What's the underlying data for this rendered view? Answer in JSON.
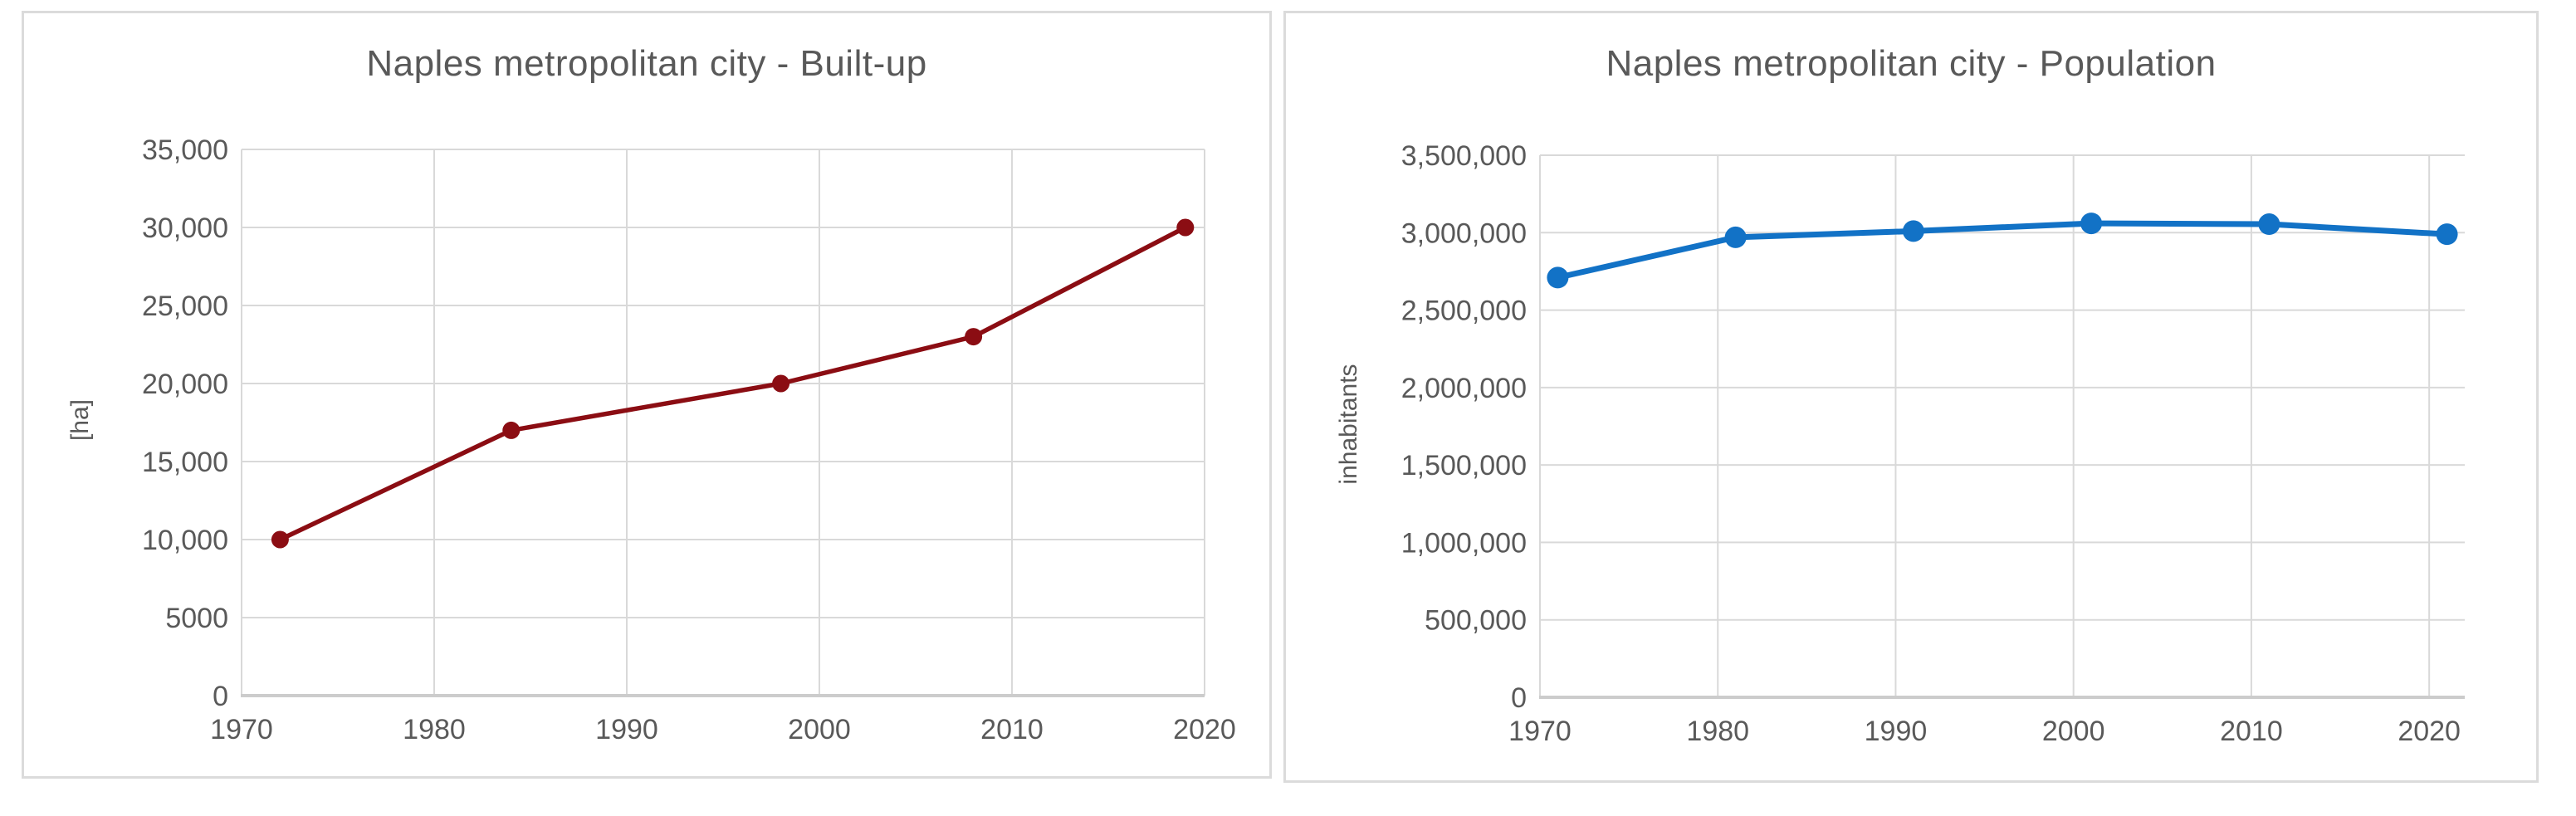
{
  "page": {
    "background": "#ffffff"
  },
  "styles": {
    "grid_color": "#D9D9D9",
    "axis_color": "#CCCCCC",
    "tick_color": "#595959",
    "title_color": "#595959",
    "card_border_color": "#DBDBDB",
    "built_up_color": "#8B0D13",
    "population_color": "#1272C6"
  },
  "chart_data": [
    {
      "type": "line",
      "title": "Naples metropolitan city - Built-up",
      "xlabel": "",
      "ylabel": "[ha]",
      "xlim": [
        1970,
        2020
      ],
      "ylim": [
        0,
        35000
      ],
      "grid": true,
      "legend": "none",
      "xticks": [
        1970,
        1980,
        1990,
        2000,
        2010,
        2020
      ],
      "xtick_labels": [
        "1970",
        "1980",
        "1990",
        "2000",
        "2010",
        "2020"
      ],
      "yticks": [
        0,
        5000,
        10000,
        15000,
        20000,
        25000,
        30000,
        35000
      ],
      "ytick_labels": [
        "0",
        "5000",
        "10,000",
        "15,000",
        "20,000",
        "25,000",
        "30,000",
        "35,000"
      ],
      "series": [
        {
          "name": "Built-up area",
          "color": "#8B0D13",
          "x": [
            1972,
            1984,
            1998,
            2008,
            2019
          ],
          "values": [
            10000,
            17000,
            20000,
            23000,
            30000
          ]
        }
      ]
    },
    {
      "type": "line",
      "title": "Naples metropolitan city - Population",
      "xlabel": "",
      "ylabel": "inhabitants",
      "xlim": [
        1970,
        2022
      ],
      "ylim": [
        0,
        3500000
      ],
      "grid": true,
      "legend": "none",
      "xticks": [
        1970,
        1980,
        1990,
        2000,
        2010,
        2020
      ],
      "xtick_labels": [
        "1970",
        "1980",
        "1990",
        "2000",
        "2010",
        "2020"
      ],
      "yticks": [
        0,
        500000,
        1000000,
        1500000,
        2000000,
        2500000,
        3000000,
        3500000
      ],
      "ytick_labels": [
        "0",
        "500,000",
        "1,000,000",
        "1,500,000",
        "2,000,000",
        "2,500,000",
        "3,000,000",
        "3,500,000"
      ],
      "series": [
        {
          "name": "Population",
          "color": "#1272C6",
          "x": [
            1971,
            1981,
            1991,
            2001,
            2011,
            2021
          ],
          "values": [
            2710000,
            2970000,
            3010000,
            3060000,
            3055000,
            2990000
          ]
        }
      ]
    }
  ]
}
